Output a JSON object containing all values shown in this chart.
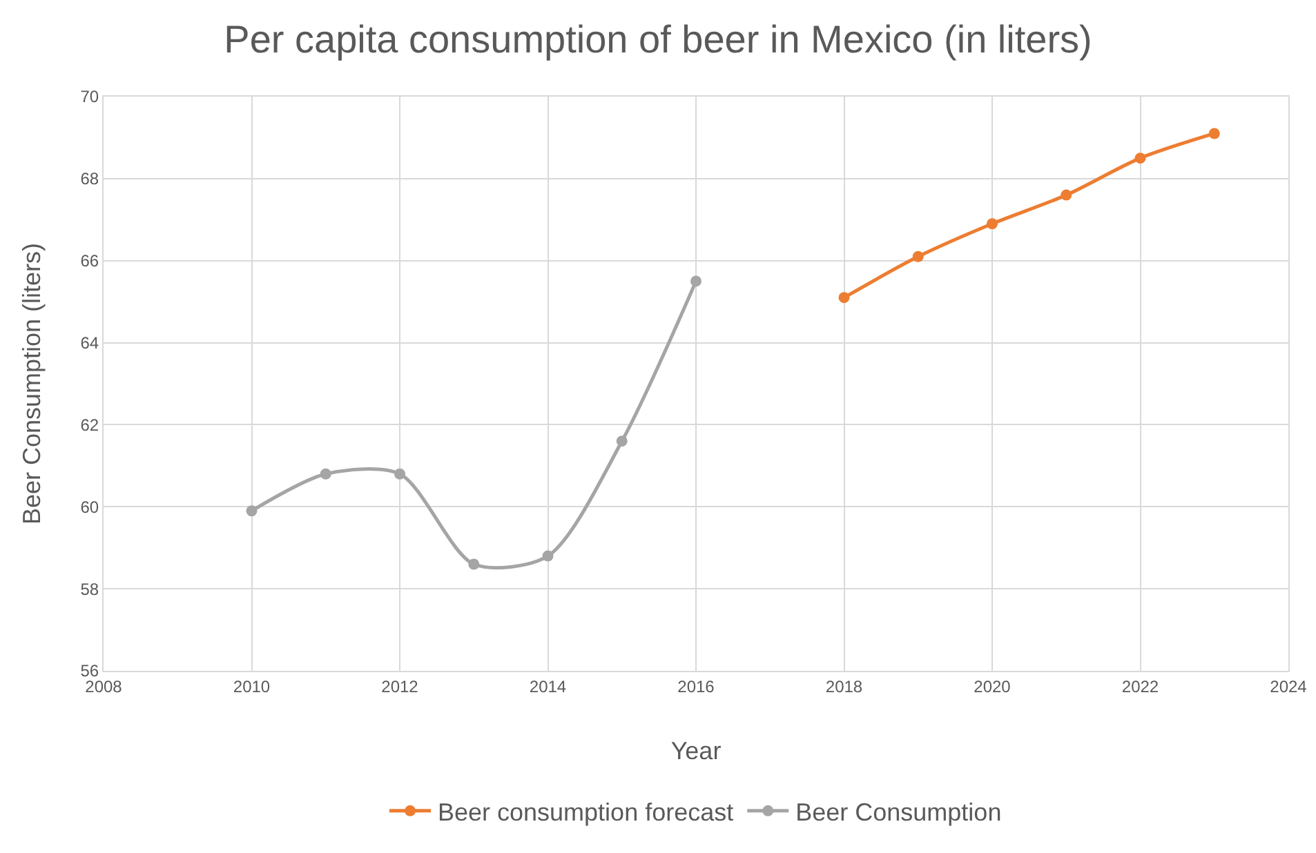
{
  "chart_data": {
    "type": "line",
    "title": "Per capita consumption of beer in Mexico (in liters)",
    "xlabel": "Year",
    "ylabel": "Beer Consumption (liters)",
    "series": [
      {
        "name": "Beer consumption forecast",
        "color": "#ed7d31",
        "x": [
          2018,
          2019,
          2020,
          2021,
          2022,
          2023
        ],
        "values": [
          65.1,
          66.1,
          66.9,
          67.6,
          68.5,
          69.1
        ]
      },
      {
        "name": "Beer Consumption",
        "color": "#a5a5a5",
        "x": [
          2010,
          2011,
          2012,
          2013,
          2014,
          2015,
          2016
        ],
        "values": [
          59.9,
          60.8,
          60.8,
          58.6,
          58.8,
          61.6,
          65.5
        ]
      }
    ],
    "xlim": [
      2008,
      2024
    ],
    "xticks": [
      2008,
      2010,
      2012,
      2014,
      2016,
      2018,
      2020,
      2022,
      2024
    ],
    "ylim": [
      56,
      70
    ],
    "yticks": [
      56,
      58,
      60,
      62,
      64,
      66,
      68,
      70
    ],
    "grid": true,
    "legend": "bottom",
    "marker": "circle",
    "line_style": "solid"
  }
}
